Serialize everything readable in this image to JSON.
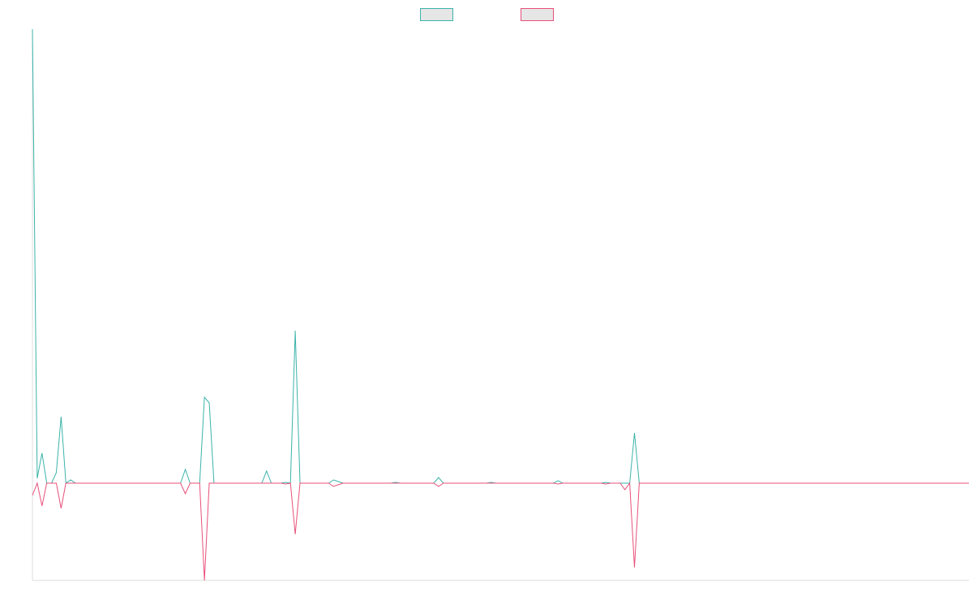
{
  "chart_data": {
    "type": "line",
    "categories": [
      null,
      null,
      null,
      null,
      null,
      null,
      null,
      null,
      null,
      null,
      null,
      null,
      null,
      null,
      null,
      null,
      null,
      null,
      null,
      null,
      null,
      null,
      null,
      null,
      null,
      null,
      null,
      null,
      null,
      null,
      null,
      null,
      null,
      null,
      null,
      null,
      null,
      null,
      null,
      null,
      null,
      null,
      null,
      null,
      null,
      null,
      null,
      null,
      null,
      null,
      null,
      null,
      null,
      null,
      null,
      null,
      null,
      null,
      null,
      null,
      null,
      null,
      null,
      null,
      null,
      null,
      null,
      null,
      null,
      null,
      null,
      null,
      null,
      null,
      null,
      null,
      null,
      null,
      null,
      null,
      null,
      null,
      null,
      null,
      null,
      null,
      null,
      null,
      null,
      null,
      null,
      null,
      null,
      null,
      null,
      null,
      null,
      null,
      null,
      null,
      null,
      null,
      null,
      null,
      null,
      null,
      null,
      null,
      null,
      null,
      null,
      null,
      null,
      null,
      null,
      null,
      null,
      null,
      null,
      null,
      null,
      null,
      null,
      null,
      null,
      null,
      null,
      null,
      null,
      null,
      null,
      null,
      null,
      null,
      null,
      null,
      null,
      null,
      null,
      null,
      null,
      null,
      null,
      null,
      null,
      null,
      null,
      null,
      null,
      null,
      null,
      null,
      null,
      null,
      null,
      null,
      null,
      null,
      null,
      null,
      null,
      null,
      null,
      null,
      null,
      null,
      null,
      null,
      null,
      null,
      null,
      null,
      null,
      null,
      null,
      null,
      null,
      null,
      null,
      null,
      null,
      null,
      null,
      null,
      null,
      null,
      null,
      null,
      null,
      null,
      null,
      null,
      null,
      null,
      null,
      null,
      null
    ],
    "series": [
      {
        "color": "#3bb3a9",
        "values": [
          560,
          6,
          37,
          0,
          0,
          13,
          82,
          0,
          4,
          0,
          0,
          0,
          0,
          0,
          0,
          0,
          0,
          0,
          0,
          0,
          0,
          0,
          0,
          0,
          0,
          0,
          0,
          0,
          0,
          0,
          0,
          0,
          17,
          0,
          0,
          0,
          106,
          99,
          0,
          0,
          0,
          0,
          0,
          0,
          0,
          0,
          0,
          0,
          0,
          15,
          0,
          0,
          0,
          1,
          0,
          188,
          0,
          0,
          0,
          0,
          0,
          0,
          0,
          4,
          2,
          0,
          0,
          0,
          0,
          0,
          0,
          0,
          0,
          0,
          0,
          0,
          1,
          0,
          0,
          0,
          0,
          0,
          0,
          0,
          0,
          7,
          0,
          0,
          0,
          0,
          0,
          0,
          0,
          0,
          0,
          0,
          1,
          0,
          0,
          0,
          0,
          0,
          0,
          0,
          0,
          0,
          0,
          0,
          0,
          0,
          3,
          0,
          0,
          0,
          0,
          0,
          0,
          0,
          0,
          0,
          1,
          0,
          0,
          0,
          0,
          0,
          62,
          0,
          0,
          0,
          0,
          0,
          0,
          0,
          0,
          0,
          0,
          0,
          0,
          0,
          0,
          0,
          0,
          0,
          0,
          0,
          0,
          0,
          0,
          0,
          0,
          0,
          0,
          0,
          0,
          0,
          0,
          0,
          0,
          0,
          0,
          0,
          0,
          0,
          0,
          0,
          0,
          0,
          0,
          0,
          0,
          0,
          0,
          0,
          0,
          0,
          0,
          0,
          0,
          0,
          0,
          0,
          0,
          0,
          0,
          0,
          0,
          0,
          0,
          0,
          0,
          0,
          0,
          0,
          0,
          0,
          0
        ]
      },
      {
        "color": "#e8507a",
        "values": [
          -15,
          0,
          -28,
          0,
          0,
          0,
          -31,
          0,
          0,
          0,
          0,
          0,
          0,
          0,
          0,
          0,
          0,
          0,
          0,
          0,
          0,
          0,
          0,
          0,
          0,
          0,
          0,
          0,
          0,
          0,
          0,
          0,
          -13,
          0,
          0,
          0,
          -120,
          0,
          0,
          0,
          0,
          0,
          0,
          0,
          0,
          0,
          0,
          0,
          0,
          0,
          0,
          0,
          0,
          -1,
          0,
          -63,
          0,
          0,
          0,
          0,
          0,
          0,
          0,
          -4,
          -2,
          0,
          0,
          0,
          0,
          0,
          0,
          0,
          0,
          0,
          0,
          0,
          0,
          0,
          0,
          0,
          0,
          0,
          0,
          0,
          0,
          -4,
          0,
          0,
          0,
          0,
          0,
          0,
          0,
          0,
          0,
          0,
          0,
          0,
          0,
          0,
          0,
          0,
          0,
          0,
          0,
          0,
          0,
          0,
          0,
          0,
          -1,
          0,
          0,
          0,
          0,
          0,
          0,
          0,
          0,
          0,
          -1,
          0,
          0,
          0,
          -8,
          0,
          -104,
          0,
          0,
          0,
          0,
          0,
          0,
          0,
          0,
          0,
          0,
          0,
          0,
          0,
          0,
          0,
          0,
          0,
          0,
          0,
          0,
          0,
          0,
          0,
          0,
          0,
          0,
          0,
          0,
          0,
          0,
          0,
          0,
          0,
          0,
          0,
          0,
          0,
          0,
          0,
          0,
          0,
          0,
          0,
          0,
          0,
          0,
          0,
          0,
          0,
          0,
          0,
          0,
          0,
          0,
          0,
          0,
          0,
          0,
          0,
          0,
          0,
          0,
          0,
          0,
          0,
          0,
          0,
          0,
          0,
          0
        ]
      }
    ],
    "ylim": [
      -120,
      560
    ]
  }
}
